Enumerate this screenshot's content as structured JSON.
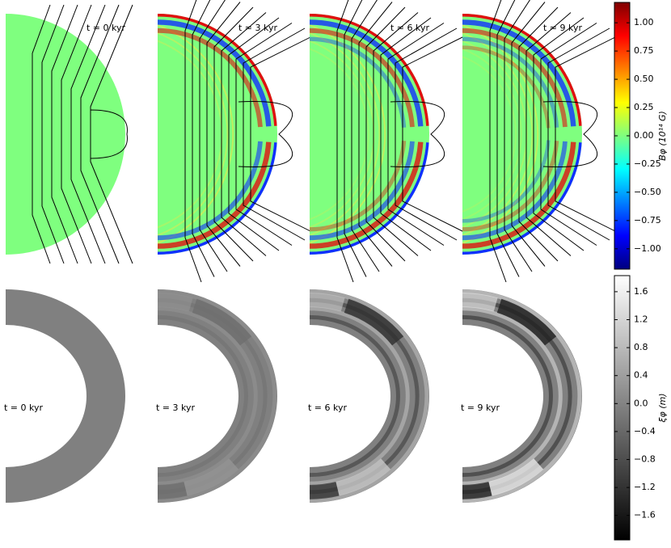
{
  "panels": {
    "top": [
      {
        "label": "t = 0 kyr"
      },
      {
        "label": "t = 3 kyr"
      },
      {
        "label": "t = 6 kyr"
      },
      {
        "label": "t = 9 kyr"
      }
    ],
    "bottom": [
      {
        "label": "t = 0 kyr"
      },
      {
        "label": "t = 3 kyr"
      },
      {
        "label": "t = 6 kyr"
      },
      {
        "label": "t = 9 kyr"
      }
    ]
  },
  "colorbars": [
    {
      "label": "Bφ (10¹⁴ G)",
      "lim": [
        -1.18,
        1.18
      ],
      "colormap": "jet",
      "ticks": [
        {
          "value": 1,
          "label": "1.00"
        },
        {
          "value": 0.75,
          "label": "0.75"
        },
        {
          "value": 0.5,
          "label": "0.50"
        },
        {
          "value": 0.25,
          "label": "0.25"
        },
        {
          "value": 0,
          "label": "0.00"
        },
        {
          "value": -0.25,
          "label": "−0.25"
        },
        {
          "value": -0.5,
          "label": "−0.50"
        },
        {
          "value": -0.75,
          "label": "−0.75"
        },
        {
          "value": -1,
          "label": "−1.00"
        }
      ]
    },
    {
      "label": "ξφ (m)",
      "lim": [
        -1.95,
        1.83
      ],
      "colormap": "gray",
      "ticks": [
        1.6,
        1.2,
        0.8,
        0.4,
        {
          "value": 0,
          "label": "0.0"
        },
        {
          "value": -0.4,
          "label": "−0.4"
        },
        {
          "value": -0.8,
          "label": "−0.8"
        },
        {
          "value": -1.2,
          "label": "−1.2"
        },
        {
          "value": -1.6,
          "label": "−1.6"
        }
      ]
    }
  ]
}
